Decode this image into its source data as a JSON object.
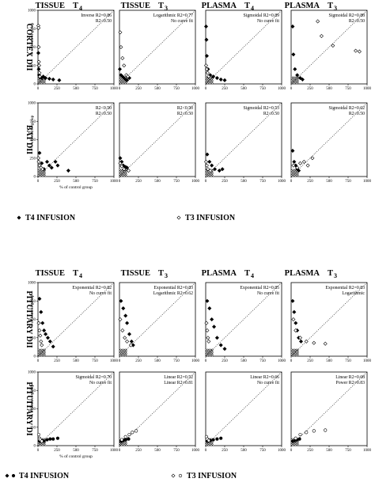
{
  "figure": {
    "ylabel": "% of control group",
    "xlabel": "% of control group",
    "x_ticks": [
      "0",
      "250",
      "500",
      "750",
      "1000"
    ],
    "y_ticks": [
      "0",
      "250",
      "500",
      "750",
      "1000"
    ],
    "xlim": [
      0,
      1000
    ],
    "ylim": [
      0,
      1000
    ]
  },
  "blocks": [
    {
      "columns": [
        {
          "title": "TISSUE",
          "sub": "4"
        },
        {
          "title": "TISSUE",
          "sub": "3"
        },
        {
          "title": "PLASMA",
          "sub": "4"
        },
        {
          "title": "PLASMA",
          "sub": "3"
        }
      ],
      "rows": [
        "CORTEX DII",
        "BAT DII"
      ],
      "legend": {
        "left_text": "T4 INFUSION",
        "right_text": "T3 INFUSION"
      }
    },
    {
      "columns": [
        {
          "title": "TISSUE",
          "sub": "4"
        },
        {
          "title": "TISSUE",
          "sub": "3"
        },
        {
          "title": "PLASMA",
          "sub": "4"
        },
        {
          "title": "PLASMA",
          "sub": "3"
        }
      ],
      "rows": [
        "PITUITARY DII",
        "PITUITARY DI"
      ],
      "legend": {
        "left_text": "T4 INFUSION",
        "right_text": "T3 INFUSION"
      }
    }
  ],
  "chart_data": [
    {
      "panel": "cortex-tissue-t4",
      "type": "scatter",
      "annotations": [
        "Inverse R2=0.86",
        "R2<0.50"
      ],
      "series": [
        {
          "marker": "filled-diamond",
          "points": [
            [
              5,
              420
            ],
            [
              10,
              200
            ],
            [
              15,
              120
            ],
            [
              30,
              90
            ],
            [
              50,
              80
            ],
            [
              70,
              100
            ],
            [
              100,
              80
            ],
            [
              150,
              70
            ],
            [
              200,
              60
            ],
            [
              280,
              50
            ]
          ]
        },
        {
          "marker": "open-diamond",
          "points": [
            [
              5,
              790
            ],
            [
              8,
              760
            ],
            [
              10,
              500
            ],
            [
              12,
              300
            ],
            [
              15,
              250
            ],
            [
              20,
              150
            ],
            [
              25,
              100
            ]
          ]
        }
      ]
    },
    {
      "panel": "cortex-tissue-t3",
      "type": "scatter",
      "annotations": [
        "Logarithmic R2=0.77",
        "No curve fit"
      ],
      "series": [
        {
          "marker": "filled-diamond",
          "points": [
            [
              5,
              200
            ],
            [
              20,
              120
            ],
            [
              40,
              100
            ],
            [
              60,
              80
            ],
            [
              80,
              60
            ],
            [
              100,
              50
            ],
            [
              130,
              80
            ]
          ]
        },
        {
          "marker": "open-diamond",
          "points": [
            [
              10,
              700
            ],
            [
              20,
              500
            ],
            [
              40,
              350
            ],
            [
              60,
              250
            ],
            [
              90,
              120
            ],
            [
              110,
              100
            ]
          ]
        }
      ]
    },
    {
      "panel": "cortex-plasma-t4",
      "type": "scatter",
      "annotations": [
        "Sigmoidal R2=0.89",
        "No curve fit"
      ],
      "series": [
        {
          "marker": "filled-diamond",
          "points": [
            [
              5,
              780
            ],
            [
              10,
              600
            ],
            [
              15,
              380
            ],
            [
              30,
              200
            ],
            [
              60,
              120
            ],
            [
              100,
              100
            ],
            [
              150,
              80
            ],
            [
              200,
              60
            ],
            [
              250,
              50
            ]
          ]
        },
        {
          "marker": "open-diamond",
          "points": [
            [
              5,
              250
            ],
            [
              15,
              200
            ],
            [
              25,
              150
            ],
            [
              40,
              100
            ]
          ]
        }
      ]
    },
    {
      "panel": "cortex-plasma-t3",
      "type": "scatter",
      "annotations": [
        "Sigmoidal R2=0.88",
        "R2<0.50"
      ],
      "series": [
        {
          "marker": "filled-diamond",
          "points": [
            [
              20,
              780
            ],
            [
              30,
              400
            ],
            [
              50,
              200
            ],
            [
              80,
              120
            ],
            [
              120,
              80
            ],
            [
              150,
              60
            ]
          ]
        },
        {
          "marker": "open-diamond",
          "points": [
            [
              350,
              850
            ],
            [
              400,
              650
            ],
            [
              550,
              520
            ],
            [
              850,
              450
            ],
            [
              900,
              440
            ]
          ]
        }
      ]
    },
    {
      "panel": "bat-tissue-t4",
      "type": "scatter",
      "annotations": [
        "R2<0.50",
        "R2<0.50"
      ],
      "series": [
        {
          "marker": "filled-diamond",
          "points": [
            [
              20,
              320
            ],
            [
              50,
              180
            ],
            [
              80,
              100
            ],
            [
              120,
              200
            ],
            [
              150,
              150
            ],
            [
              180,
              120
            ],
            [
              230,
              200
            ],
            [
              260,
              150
            ],
            [
              400,
              80
            ]
          ]
        },
        {
          "marker": "open-diamond",
          "points": [
            [
              5,
              250
            ],
            [
              10,
              200
            ],
            [
              20,
              150
            ],
            [
              40,
              120
            ],
            [
              60,
              100
            ]
          ]
        }
      ]
    },
    {
      "panel": "bat-tissue-t3",
      "type": "scatter",
      "annotations": [
        "R2<0.50",
        "R2<0.50"
      ],
      "series": [
        {
          "marker": "filled-diamond",
          "points": [
            [
              10,
              250
            ],
            [
              30,
              200
            ],
            [
              50,
              150
            ],
            [
              80,
              130
            ],
            [
              100,
              120
            ]
          ]
        },
        {
          "marker": "open-diamond",
          "points": [
            [
              10,
              180
            ],
            [
              30,
              140
            ],
            [
              60,
              100
            ],
            [
              120,
              80
            ]
          ]
        }
      ]
    },
    {
      "panel": "bat-plasma-t4",
      "type": "scatter",
      "annotations": [
        "Sigmoidal R2=0.53",
        "R2<0.50"
      ],
      "series": [
        {
          "marker": "filled-diamond",
          "points": [
            [
              20,
              300
            ],
            [
              50,
              200
            ],
            [
              80,
              150
            ],
            [
              120,
              100
            ],
            [
              180,
              80
            ],
            [
              220,
              100
            ]
          ]
        },
        {
          "marker": "open-diamond",
          "points": [
            [
              5,
              200
            ],
            [
              15,
              150
            ],
            [
              30,
              100
            ],
            [
              60,
              80
            ]
          ]
        }
      ]
    },
    {
      "panel": "bat-plasma-t3",
      "type": "scatter",
      "annotations": [
        "Sigmoidal R2=0.62",
        "R2<0.50"
      ],
      "series": [
        {
          "marker": "filled-diamond",
          "points": [
            [
              20,
              350
            ],
            [
              40,
              200
            ],
            [
              60,
              150
            ],
            [
              80,
              100
            ],
            [
              100,
              80
            ]
          ]
        },
        {
          "marker": "open-diamond",
          "points": [
            [
              30,
              150
            ],
            [
              80,
              120
            ],
            [
              120,
              180
            ],
            [
              170,
              200
            ],
            [
              220,
              150
            ],
            [
              280,
              250
            ]
          ]
        }
      ]
    },
    {
      "panel": "pituitary-dii-tissue-t4",
      "type": "scatter",
      "annotations": [
        "Exponential R2=0.82",
        "No curve fit"
      ],
      "series": [
        {
          "marker": "filled-diamond",
          "points": [
            [
              20,
              780
            ],
            [
              40,
              600
            ],
            [
              60,
              450
            ],
            [
              80,
              350
            ],
            [
              100,
              300
            ],
            [
              130,
              250
            ],
            [
              160,
              200
            ],
            [
              200,
              130
            ]
          ]
        },
        {
          "marker": "open-diamond",
          "points": [
            [
              10,
              450
            ],
            [
              20,
              350
            ],
            [
              30,
              280
            ],
            [
              40,
              200
            ],
            [
              50,
              150
            ]
          ]
        }
      ]
    },
    {
      "panel": "pituitary-dii-tissue-t3",
      "type": "scatter",
      "annotations": [
        "Exponential R2=0.83",
        "Logarithmic R2=0.62"
      ],
      "series": [
        {
          "marker": "filled-diamond",
          "points": [
            [
              20,
              750
            ],
            [
              50,
              650
            ],
            [
              80,
              550
            ],
            [
              100,
              450
            ],
            [
              130,
              300
            ],
            [
              160,
              200
            ],
            [
              180,
              150
            ]
          ]
        },
        {
          "marker": "open-diamond",
          "points": [
            [
              10,
              500
            ],
            [
              40,
              350
            ],
            [
              70,
              250
            ],
            [
              100,
              200
            ],
            [
              150,
              150
            ]
          ]
        }
      ]
    },
    {
      "panel": "pituitary-dii-plasma-t4",
      "type": "scatter",
      "annotations": [
        "Exponential R2=0.85",
        "No curve fit"
      ],
      "series": [
        {
          "marker": "filled-diamond",
          "points": [
            [
              20,
              750
            ],
            [
              50,
              650
            ],
            [
              80,
              500
            ],
            [
              110,
              400
            ],
            [
              150,
              250
            ],
            [
              200,
              150
            ],
            [
              250,
              100
            ]
          ]
        },
        {
          "marker": "open-diamond",
          "points": [
            [
              10,
              450
            ],
            [
              20,
              350
            ],
            [
              30,
              250
            ],
            [
              40,
              200
            ]
          ]
        }
      ]
    },
    {
      "panel": "pituitary-dii-plasma-t3",
      "type": "scatter",
      "annotations": [
        "Exponential R2=0.83",
        "Logarithmic"
      ],
      "series": [
        {
          "marker": "filled-diamond",
          "points": [
            [
              20,
              750
            ],
            [
              40,
              600
            ],
            [
              60,
              450
            ],
            [
              80,
              350
            ],
            [
              100,
              250
            ],
            [
              130,
              200
            ]
          ]
        },
        {
          "marker": "open-diamond",
          "points": [
            [
              30,
              500
            ],
            [
              60,
              350
            ],
            [
              120,
              250
            ],
            [
              200,
              200
            ],
            [
              300,
              180
            ],
            [
              450,
              170
            ]
          ]
        }
      ]
    },
    {
      "panel": "pituitary-di-tissue-t4",
      "type": "scatter",
      "annotations": [
        "Sigmoidal R2=0.70",
        "No curve fit"
      ],
      "series": [
        {
          "marker": "filled-circle",
          "points": [
            [
              20,
              60
            ],
            [
              50,
              70
            ],
            [
              80,
              60
            ],
            [
              120,
              80
            ],
            [
              160,
              90
            ],
            [
              200,
              90
            ],
            [
              260,
              100
            ]
          ]
        },
        {
          "marker": "open-circle",
          "points": [
            [
              10,
              150
            ],
            [
              20,
              100
            ],
            [
              30,
              80
            ],
            [
              50,
              60
            ]
          ]
        }
      ]
    },
    {
      "panel": "pituitary-di-tissue-t3",
      "type": "scatter",
      "annotations": [
        "Linear R2=0.52",
        "Linear R2=0.81"
      ],
      "series": [
        {
          "marker": "filled-circle",
          "points": [
            [
              20,
              60
            ],
            [
              50,
              70
            ],
            [
              80,
              80
            ],
            [
              120,
              90
            ]
          ]
        },
        {
          "marker": "open-circle",
          "points": [
            [
              30,
              80
            ],
            [
              80,
              120
            ],
            [
              130,
              150
            ],
            [
              170,
              180
            ],
            [
              220,
              200
            ]
          ]
        }
      ]
    },
    {
      "panel": "pituitary-di-plasma-t4",
      "type": "scatter",
      "annotations": [
        "Linear R2=0.66",
        "No curve fit"
      ],
      "series": [
        {
          "marker": "filled-circle",
          "points": [
            [
              20,
              60
            ],
            [
              60,
              70
            ],
            [
              100,
              80
            ],
            [
              150,
              90
            ],
            [
              200,
              100
            ]
          ]
        },
        {
          "marker": "open-circle",
          "points": [
            [
              10,
              120
            ],
            [
              20,
              90
            ],
            [
              40,
              70
            ]
          ]
        }
      ]
    },
    {
      "panel": "pituitary-di-plasma-t3",
      "type": "scatter",
      "annotations": [
        "Linear R2=0.68",
        "Power R2=0.83"
      ],
      "series": [
        {
          "marker": "filled-circle",
          "points": [
            [
              20,
              60
            ],
            [
              50,
              70
            ],
            [
              80,
              80
            ],
            [
              110,
              90
            ]
          ]
        },
        {
          "marker": "open-circle",
          "points": [
            [
              60,
              100
            ],
            [
              120,
              150
            ],
            [
              200,
              180
            ],
            [
              300,
              200
            ],
            [
              450,
              210
            ]
          ]
        }
      ]
    }
  ]
}
